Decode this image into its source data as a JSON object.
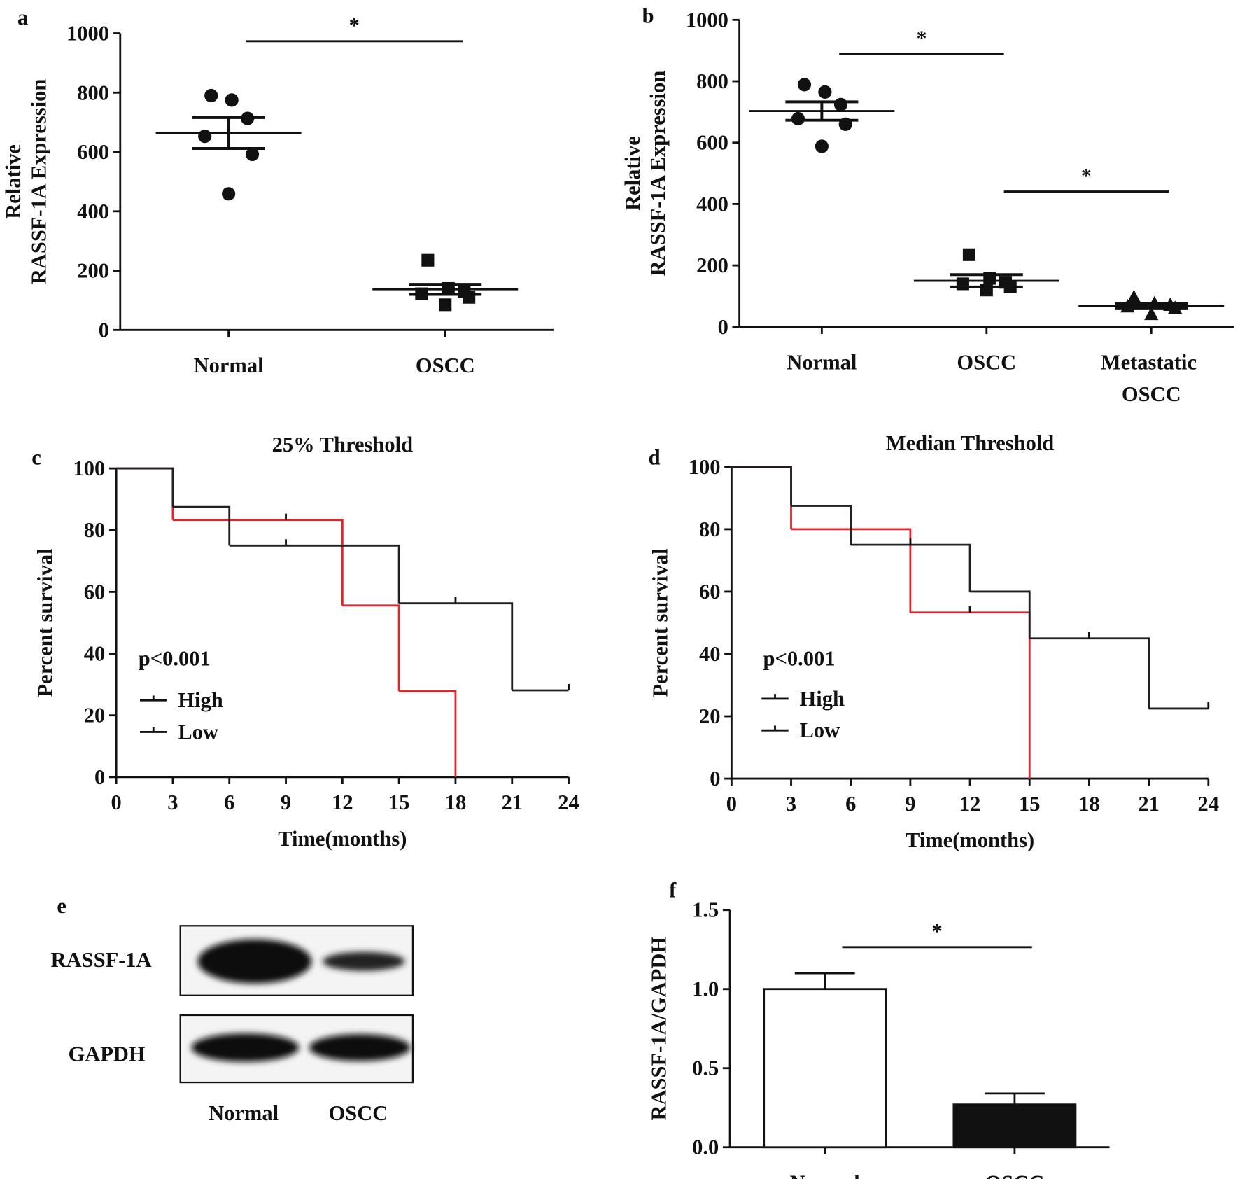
{
  "chart_data": [
    {
      "type": "strip",
      "panel": "a",
      "ylabel": [
        "Relative",
        "RASSF-1A Expression"
      ],
      "categories": [
        "Normal",
        "OSCC"
      ],
      "values": [
        [
          790,
          775,
          713,
          653,
          592,
          459
        ],
        [
          235,
          140,
          130,
          122,
          110,
          85
        ]
      ],
      "means": [
        664,
        137
      ],
      "errors": [
        52,
        17
      ],
      "markers": [
        "circle",
        "square"
      ],
      "color": "#111111",
      "ylim": [
        0,
        1000
      ],
      "yticks": [
        0,
        200,
        400,
        600,
        800,
        1000
      ],
      "annotations": [
        {
          "text": "*",
          "between": [
            "Normal",
            "OSCC"
          ]
        }
      ]
    },
    {
      "type": "strip",
      "panel": "b",
      "ylabel": [
        "Relative",
        "RASSF-1A Expression"
      ],
      "categories": [
        "Normal",
        "OSCC",
        "Metastatic OSCC"
      ],
      "values": [
        [
          789,
          765,
          724,
          678,
          660,
          588
        ],
        [
          235,
          158,
          145,
          140,
          130,
          120
        ],
        [
          95,
          75,
          70,
          65,
          60,
          40
        ]
      ],
      "means": [
        703,
        150,
        67
      ],
      "errors": [
        30,
        20,
        8
      ],
      "markers": [
        "circle",
        "square",
        "triangle"
      ],
      "color": "#111111",
      "ylim": [
        0,
        1000
      ],
      "yticks": [
        0,
        200,
        400,
        600,
        800,
        1000
      ],
      "annotations": [
        {
          "text": "*",
          "between": [
            "Normal",
            "OSCC"
          ]
        },
        {
          "text": "*",
          "between": [
            "OSCC",
            "Metastatic OSCC"
          ]
        }
      ]
    },
    {
      "type": "survival",
      "panel": "c",
      "title": "25% Threshold",
      "xlabel": "Time(months)",
      "ylabel": "Percent survival",
      "annotation": "p<0.001",
      "xlim": [
        0,
        24
      ],
      "xticks": [
        0,
        3,
        6,
        9,
        12,
        15,
        18,
        21,
        24
      ],
      "ylim": [
        0,
        100
      ],
      "yticks": [
        0,
        20,
        40,
        60,
        80,
        100
      ],
      "series": [
        {
          "name": "High",
          "color": "#e0262b",
          "x": [
            0,
            3,
            12,
            15,
            18
          ],
          "values": [
            100,
            83.3,
            55.6,
            27.8,
            0
          ],
          "censor_x": [
            9
          ],
          "censor_y": [
            83.3
          ]
        },
        {
          "name": "Low",
          "color": "#231f20",
          "x": [
            0,
            3,
            6,
            15,
            21
          ],
          "values": [
            100,
            87.5,
            75,
            56.3,
            28.1
          ],
          "censor_x": [
            9,
            18,
            24
          ],
          "censor_y": [
            75,
            56.3,
            28.1
          ]
        }
      ]
    },
    {
      "type": "survival",
      "panel": "d",
      "title": "Median  Threshold",
      "xlabel": "Time(months)",
      "ylabel": "Percent survival",
      "annotation": "p<0.001",
      "xlim": [
        0,
        24
      ],
      "xticks": [
        0,
        3,
        6,
        9,
        12,
        15,
        18,
        21,
        24
      ],
      "ylim": [
        0,
        100
      ],
      "yticks": [
        0,
        20,
        40,
        60,
        80,
        100
      ],
      "series": [
        {
          "name": "High",
          "color": "#e0262b",
          "x": [
            0,
            3,
            9,
            15
          ],
          "values": [
            100,
            80,
            53.3,
            0
          ],
          "censor_x": [
            12
          ],
          "censor_y": [
            53.3
          ]
        },
        {
          "name": "Low",
          "color": "#231f20",
          "x": [
            0,
            3,
            6,
            12,
            15,
            21
          ],
          "values": [
            100,
            87.5,
            75,
            60,
            45,
            22.5
          ],
          "censor_x": [
            9,
            18,
            24
          ],
          "censor_y": [
            75,
            45,
            22.5
          ]
        }
      ]
    },
    {
      "type": "bar",
      "panel": "f",
      "ylabel": "RASSF-1A/GAPDH",
      "categories": [
        "Normal",
        "OSCC"
      ],
      "values": [
        1.0,
        0.27
      ],
      "errors": [
        0.1,
        0.07
      ],
      "colors": [
        "#ffffff",
        "#111111"
      ],
      "ylim": [
        0,
        1.5
      ],
      "yticks": [
        {
          "value": 0,
          "label": "0.0"
        },
        {
          "value": 0.5,
          "label": "0.5"
        },
        {
          "value": 1,
          "label": "1.0"
        },
        {
          "value": 1.5,
          "label": "1.5"
        }
      ],
      "annotations": [
        {
          "text": "*",
          "between": [
            "Normal",
            "OSCC"
          ]
        }
      ]
    }
  ],
  "blot": {
    "panel": "e",
    "rows": [
      "RASSF-1A",
      "GAPDH"
    ],
    "columns": [
      "Normal",
      "OSCC"
    ]
  }
}
